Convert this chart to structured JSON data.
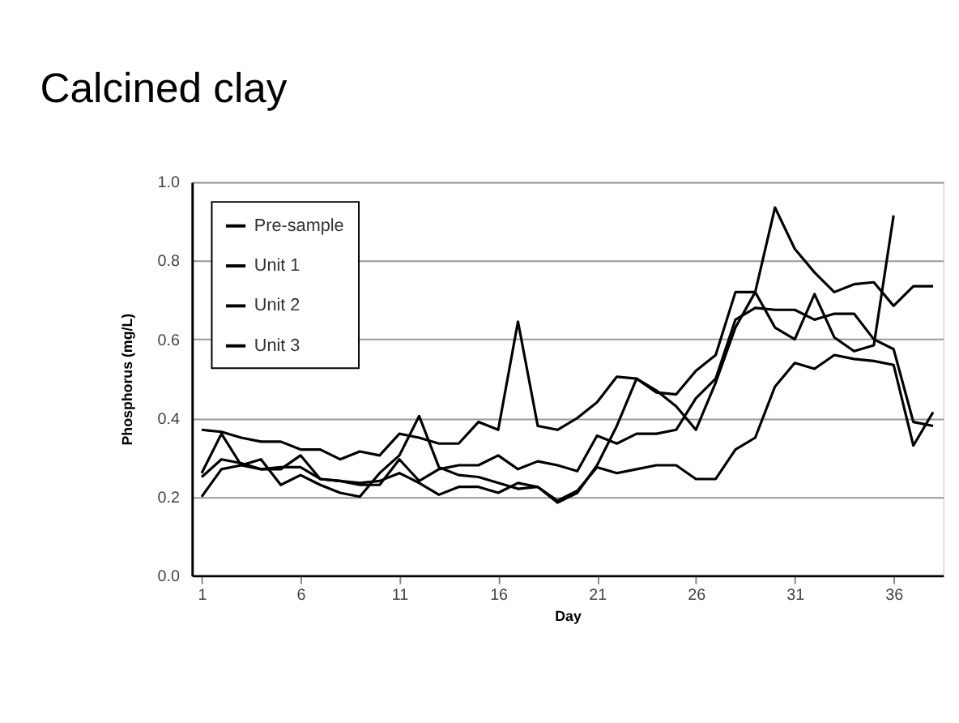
{
  "chart_data": {
    "type": "line",
    "title": "Calcined clay",
    "xlabel": "Day",
    "ylabel": "Phosphorus (mg/L)",
    "x": [
      1,
      2,
      3,
      4,
      5,
      6,
      7,
      8,
      9,
      10,
      11,
      12,
      13,
      14,
      15,
      16,
      17,
      18,
      19,
      20,
      21,
      22,
      23,
      24,
      25,
      26,
      27,
      28,
      29,
      30,
      31,
      32,
      33,
      34,
      35,
      36,
      37,
      38
    ],
    "series": [
      {
        "name": "Pre-sample",
        "color": "#000000",
        "values": [
          0.37,
          0.365,
          0.35,
          0.34,
          0.34,
          0.32,
          0.32,
          0.295,
          0.315,
          0.305,
          0.36,
          0.35,
          0.335,
          0.335,
          0.39,
          0.37,
          0.645,
          0.38,
          0.37,
          0.4,
          0.44,
          0.505,
          0.5,
          0.465,
          0.46,
          0.52,
          0.56,
          0.72,
          0.72,
          0.63,
          0.6,
          0.715,
          0.605,
          0.57,
          0.585,
          0.915,
          null,
          null
        ]
      },
      {
        "name": "Unit 1",
        "color": "#000000",
        "values": [
          0.26,
          0.36,
          0.28,
          0.295,
          0.23,
          0.255,
          0.23,
          0.21,
          0.2,
          0.26,
          0.305,
          0.405,
          0.275,
          0.255,
          0.25,
          0.235,
          0.22,
          0.225,
          0.185,
          0.21,
          0.28,
          0.38,
          0.5,
          0.47,
          0.43,
          0.37,
          0.49,
          0.63,
          0.72,
          0.935,
          0.83,
          0.77,
          0.72,
          0.74,
          0.745,
          0.685,
          0.735,
          0.735
        ]
      },
      {
        "name": "Unit 2",
        "color": "#000000",
        "values": [
          0.2,
          0.27,
          0.28,
          0.27,
          0.27,
          0.305,
          0.245,
          0.24,
          0.23,
          0.23,
          0.295,
          0.24,
          0.27,
          0.28,
          0.28,
          0.305,
          0.27,
          0.29,
          0.28,
          0.265,
          0.355,
          0.335,
          0.36,
          0.36,
          0.37,
          0.45,
          0.5,
          0.65,
          0.68,
          0.675,
          0.675,
          0.65,
          0.665,
          0.665,
          0.6,
          0.575,
          0.39,
          0.38
        ]
      },
      {
        "name": "Unit 3",
        "color": "#000000",
        "values": [
          0.25,
          0.295,
          0.285,
          0.27,
          0.275,
          0.275,
          0.245,
          0.24,
          0.235,
          0.24,
          0.26,
          0.235,
          0.205,
          0.225,
          0.225,
          0.21,
          0.235,
          0.225,
          0.19,
          0.215,
          0.275,
          0.26,
          0.27,
          0.28,
          0.28,
          0.245,
          0.245,
          0.32,
          0.35,
          0.48,
          0.54,
          0.525,
          0.56,
          0.55,
          0.545,
          0.535,
          0.33,
          0.415
        ]
      }
    ],
    "xlim": [
      0.5,
      38.5
    ],
    "xticks": [
      1,
      6,
      11,
      16,
      21,
      26,
      31,
      36
    ],
    "ylim": [
      0,
      1
    ],
    "yticks": [
      {
        "value": 0,
        "label": "0.0"
      },
      {
        "value": 0.2,
        "label": "0.2"
      },
      {
        "value": 0.4,
        "label": "0.4"
      },
      {
        "value": 0.6,
        "label": "0.6"
      },
      {
        "value": 0.8,
        "label": "0.8"
      },
      {
        "value": 1,
        "label": "1.0"
      }
    ],
    "grid": "y",
    "legend": "top left",
    "marker": "none",
    "line_style": "solid"
  }
}
